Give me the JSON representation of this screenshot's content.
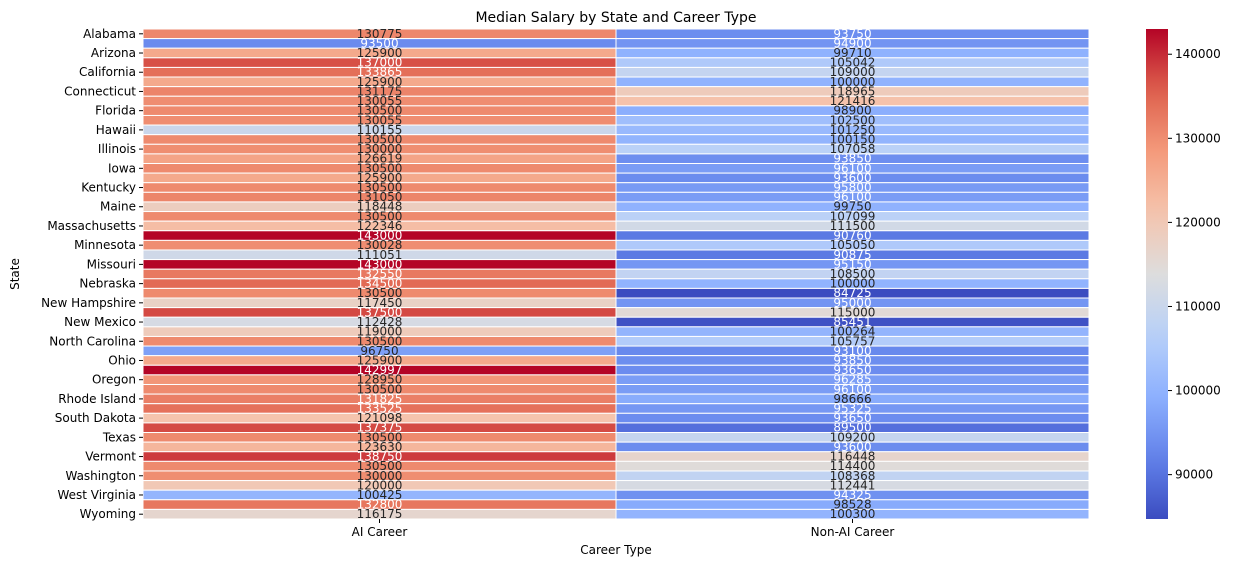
{
  "chart_data": {
    "type": "heatmap",
    "title": "Median Salary by State and Career Type",
    "xlabel": "Career Type",
    "ylabel": "State",
    "columns": [
      "AI Career",
      "Non-AI Career"
    ],
    "rows": [
      {
        "state": "Alabama",
        "values": [
          130775,
          93750
        ],
        "tick": true
      },
      {
        "state": "",
        "values": [
          93500,
          94900
        ],
        "tick": false
      },
      {
        "state": "Arizona",
        "values": [
          125900,
          99710
        ],
        "tick": true
      },
      {
        "state": "",
        "values": [
          137000,
          105042
        ],
        "tick": false
      },
      {
        "state": "California",
        "values": [
          133865,
          109000
        ],
        "tick": true
      },
      {
        "state": "",
        "values": [
          125900,
          100000
        ],
        "tick": false
      },
      {
        "state": "Connecticut",
        "values": [
          131175,
          118965
        ],
        "tick": true
      },
      {
        "state": "",
        "values": [
          130055,
          121416
        ],
        "tick": false
      },
      {
        "state": "Florida",
        "values": [
          130500,
          98900
        ],
        "tick": true
      },
      {
        "state": "",
        "values": [
          130055,
          102500
        ],
        "tick": false
      },
      {
        "state": "Hawaii",
        "values": [
          110155,
          101250
        ],
        "tick": true
      },
      {
        "state": "",
        "values": [
          130500,
          100150
        ],
        "tick": false
      },
      {
        "state": "Illinois",
        "values": [
          130000,
          107058
        ],
        "tick": true
      },
      {
        "state": "",
        "values": [
          126619,
          93850
        ],
        "tick": false
      },
      {
        "state": "Iowa",
        "values": [
          130500,
          96100
        ],
        "tick": true
      },
      {
        "state": "",
        "values": [
          125900,
          93600
        ],
        "tick": false
      },
      {
        "state": "Kentucky",
        "values": [
          130500,
          95800
        ],
        "tick": true
      },
      {
        "state": "",
        "values": [
          131050,
          96100
        ],
        "tick": false
      },
      {
        "state": "Maine",
        "values": [
          118448,
          99750
        ],
        "tick": true
      },
      {
        "state": "",
        "values": [
          130500,
          107099
        ],
        "tick": false
      },
      {
        "state": "Massachusetts",
        "values": [
          122346,
          111500
        ],
        "tick": true
      },
      {
        "state": "",
        "values": [
          143000,
          90760
        ],
        "tick": false
      },
      {
        "state": "Minnesota",
        "values": [
          130028,
          105050
        ],
        "tick": true
      },
      {
        "state": "",
        "values": [
          111051,
          90875
        ],
        "tick": false
      },
      {
        "state": "Missouri",
        "values": [
          143000,
          95150
        ],
        "tick": true
      },
      {
        "state": "",
        "values": [
          132550,
          108500
        ],
        "tick": false
      },
      {
        "state": "Nebraska",
        "values": [
          134500,
          100000
        ],
        "tick": true
      },
      {
        "state": "",
        "values": [
          130500,
          84725
        ],
        "tick": false
      },
      {
        "state": "New Hampshire",
        "values": [
          117450,
          95000
        ],
        "tick": true
      },
      {
        "state": "",
        "values": [
          137500,
          115000
        ],
        "tick": false
      },
      {
        "state": "New Mexico",
        "values": [
          112428,
          85451
        ],
        "tick": true
      },
      {
        "state": "",
        "values": [
          119000,
          100264
        ],
        "tick": false
      },
      {
        "state": "North Carolina",
        "values": [
          130500,
          105757
        ],
        "tick": true
      },
      {
        "state": "",
        "values": [
          96750,
          93100
        ],
        "tick": false
      },
      {
        "state": "Ohio",
        "values": [
          125900,
          93850
        ],
        "tick": true
      },
      {
        "state": "",
        "values": [
          142997,
          93650
        ],
        "tick": false
      },
      {
        "state": "Oregon",
        "values": [
          128950,
          96285
        ],
        "tick": true
      },
      {
        "state": "",
        "values": [
          130500,
          96100
        ],
        "tick": false
      },
      {
        "state": "Rhode Island",
        "values": [
          131825,
          98666
        ],
        "tick": true
      },
      {
        "state": "",
        "values": [
          133525,
          95325
        ],
        "tick": false
      },
      {
        "state": "South Dakota",
        "values": [
          121098,
          93650
        ],
        "tick": true
      },
      {
        "state": "",
        "values": [
          137375,
          89500
        ],
        "tick": false
      },
      {
        "state": "Texas",
        "values": [
          130500,
          109200
        ],
        "tick": true
      },
      {
        "state": "",
        "values": [
          123630,
          93600
        ],
        "tick": false
      },
      {
        "state": "Vermont",
        "values": [
          138750,
          116448
        ],
        "tick": true
      },
      {
        "state": "",
        "values": [
          130500,
          114400
        ],
        "tick": false
      },
      {
        "state": "Washington",
        "values": [
          130000,
          108368
        ],
        "tick": true
      },
      {
        "state": "",
        "values": [
          120000,
          112441
        ],
        "tick": false
      },
      {
        "state": "West Virginia",
        "values": [
          100425,
          94325
        ],
        "tick": true
      },
      {
        "state": "",
        "values": [
          132800,
          98528
        ],
        "tick": false
      },
      {
        "state": "Wyoming",
        "values": [
          116175,
          100300
        ],
        "tick": true
      }
    ],
    "colormap": "coolwarm",
    "colorbar": {
      "vmin": 84725,
      "vmax": 143000,
      "ticks": [
        90000,
        100000,
        110000,
        120000,
        130000,
        140000
      ]
    },
    "annotated": true
  }
}
